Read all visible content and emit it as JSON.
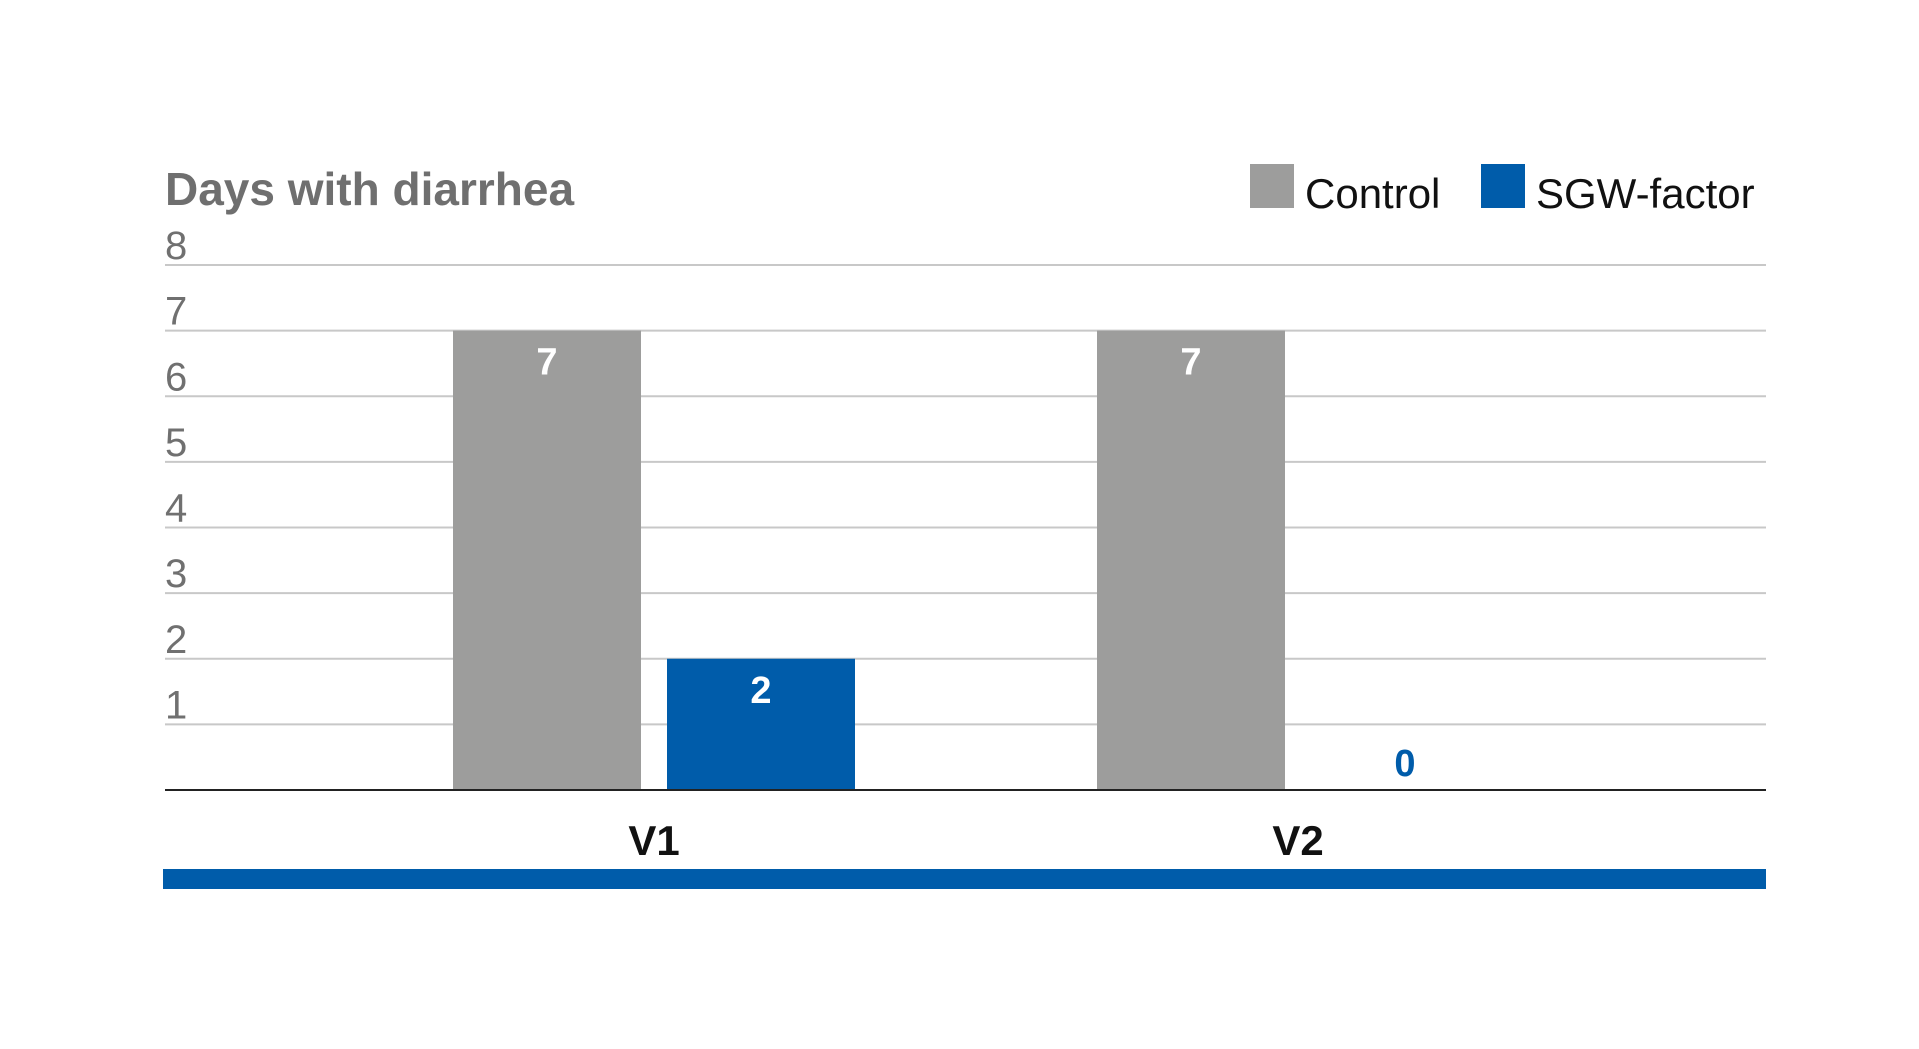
{
  "chart_data": {
    "type": "bar",
    "title": "Days with diarrhea",
    "xlabel": "",
    "ylabel": "",
    "categories": [
      "V1",
      "V2"
    ],
    "series": [
      {
        "name": "Control",
        "values": [
          7,
          7
        ],
        "color": "#9d9d9c"
      },
      {
        "name": "SGW-factor",
        "values": [
          2,
          0
        ],
        "color": "#005caa"
      }
    ],
    "data_labels": [
      [
        "7",
        "7"
      ],
      [
        "2",
        "0"
      ]
    ],
    "yticks": [
      "1",
      "2",
      "3",
      "4",
      "5",
      "6",
      "7",
      "8"
    ],
    "ylim": [
      0,
      8
    ],
    "grid": true,
    "legend_position": "top-right",
    "colors": {
      "title": "#6f6f6f",
      "ytick": "#707070",
      "gridline": "#c8c8c8",
      "axis": "#222222",
      "footer_bar": "#005caa",
      "label_on_bar": "#ffffff"
    }
  }
}
